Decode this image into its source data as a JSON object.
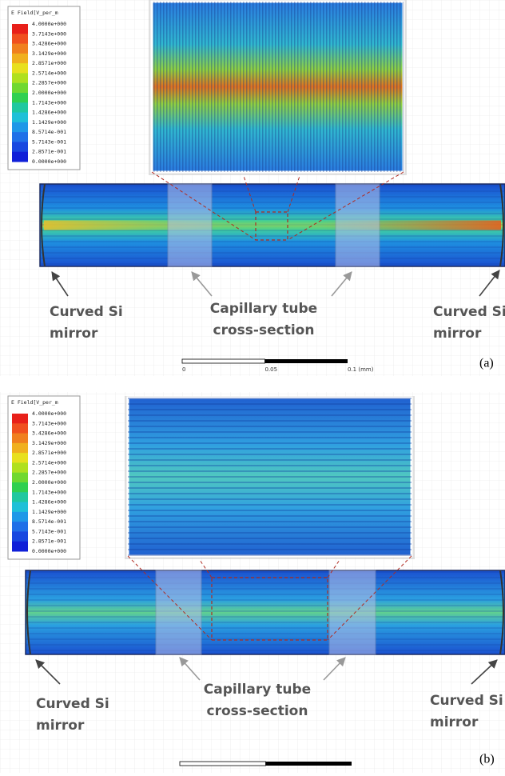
{
  "panels": [
    {
      "legend": {
        "title": "E Field[V_per_m",
        "labels": [
          "4.0000e+000",
          "3.7143e+000",
          "3.4286e+000",
          "3.1429e+000",
          "2.8571e+000",
          "2.5714e+000",
          "2.2857e+000",
          "2.0000e+000",
          "1.7143e+000",
          "1.4286e+000",
          "1.1429e+000",
          "8.5714e-001",
          "5.7143e-001",
          "2.8571e-001",
          "0.0000e+000"
        ]
      },
      "left_mirror": [
        "Curved Si",
        "mirror"
      ],
      "capillary": [
        "Capillary tube",
        "cross-section"
      ],
      "right_mirror": [
        "Curved Si",
        "mirror"
      ],
      "scale": [
        "0",
        "0.05",
        "0.1 (mm)"
      ],
      "tag": "(a)"
    },
    {
      "legend": {
        "title": "E Field[V_per_m",
        "labels": [
          "4.0000e+000",
          "3.7143e+000",
          "3.4286e+000",
          "3.1429e+000",
          "2.8571e+000",
          "2.5714e+000",
          "2.2857e+000",
          "2.0000e+000",
          "1.7143e+000",
          "1.4286e+000",
          "1.1429e+000",
          "8.5714e-001",
          "5.7143e-001",
          "2.8571e-001",
          "0.0000e+000"
        ]
      },
      "left_mirror": [
        "Curved Si",
        "mirror"
      ],
      "capillary": [
        "Capillary tube",
        "cross-section"
      ],
      "right_mirror": [
        "Curved Si",
        "mirror"
      ],
      "tag": "(b)"
    }
  ]
}
